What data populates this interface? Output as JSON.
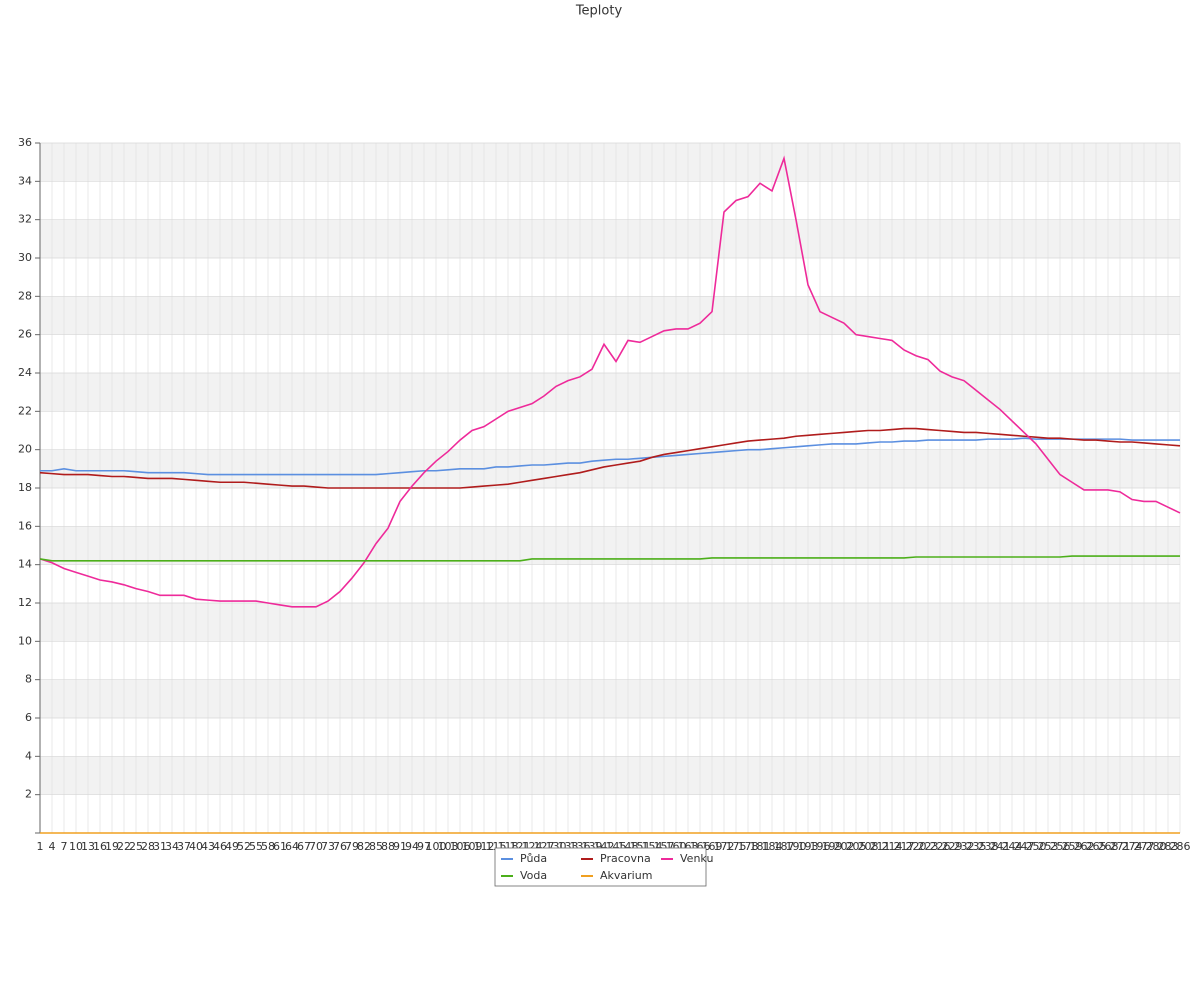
{
  "chart_data": {
    "type": "line",
    "title": "Teploty",
    "categories": [
      "1",
      "4",
      "7",
      "10",
      "13",
      "16",
      "19",
      "22",
      "25",
      "28",
      "31",
      "34",
      "37",
      "40",
      "43",
      "46",
      "49",
      "52",
      "55",
      "58",
      "61",
      "64",
      "67",
      "70",
      "73",
      "76",
      "79",
      "82",
      "85",
      "88",
      "91",
      "94",
      "97",
      "100",
      "103",
      "106",
      "109",
      "112",
      "115",
      "118",
      "121",
      "124",
      "127",
      "130",
      "133",
      "136",
      "139",
      "142",
      "145",
      "148",
      "151",
      "154",
      "157",
      "160",
      "163",
      "166",
      "169",
      "172",
      "175",
      "178",
      "181",
      "184",
      "187",
      "190",
      "193",
      "196",
      "199",
      "202",
      "205",
      "208",
      "211",
      "214",
      "217",
      "220",
      "223",
      "226",
      "229",
      "232",
      "235",
      "238",
      "241",
      "244",
      "247",
      "250",
      "253",
      "256",
      "259",
      "262",
      "265",
      "268",
      "271",
      "274",
      "277",
      "280",
      "283",
      "286"
    ],
    "series": [
      {
        "name": "Půda",
        "color": "#5b8fe0",
        "values": [
          18.9,
          18.9,
          19.0,
          18.9,
          18.9,
          18.9,
          18.9,
          18.9,
          18.85,
          18.8,
          18.8,
          18.8,
          18.8,
          18.75,
          18.7,
          18.7,
          18.7,
          18.7,
          18.7,
          18.7,
          18.7,
          18.7,
          18.7,
          18.7,
          18.7,
          18.7,
          18.7,
          18.7,
          18.7,
          18.75,
          18.8,
          18.85,
          18.9,
          18.9,
          18.95,
          19.0,
          19.0,
          19.0,
          19.1,
          19.1,
          19.15,
          19.2,
          19.2,
          19.25,
          19.3,
          19.3,
          19.4,
          19.45,
          19.5,
          19.5,
          19.55,
          19.6,
          19.65,
          19.7,
          19.75,
          19.8,
          19.85,
          19.9,
          19.95,
          20.0,
          20.0,
          20.05,
          20.1,
          20.15,
          20.2,
          20.25,
          20.3,
          20.3,
          20.3,
          20.35,
          20.4,
          20.4,
          20.45,
          20.45,
          20.5,
          20.5,
          20.5,
          20.5,
          20.5,
          20.55,
          20.55,
          20.55,
          20.6,
          20.55,
          20.55,
          20.55,
          20.55,
          20.55,
          20.55,
          20.55,
          20.55,
          20.5,
          20.5,
          20.5,
          20.5,
          20.5
        ]
      },
      {
        "name": "Pracovna",
        "color": "#b01c1c",
        "values": [
          18.8,
          18.75,
          18.7,
          18.7,
          18.7,
          18.65,
          18.6,
          18.6,
          18.55,
          18.5,
          18.5,
          18.5,
          18.45,
          18.4,
          18.35,
          18.3,
          18.3,
          18.3,
          18.25,
          18.2,
          18.15,
          18.1,
          18.1,
          18.05,
          18.0,
          18.0,
          18.0,
          18.0,
          18.0,
          18.0,
          18.0,
          18.0,
          18.0,
          18.0,
          18.0,
          18.0,
          18.05,
          18.1,
          18.15,
          18.2,
          18.3,
          18.4,
          18.5,
          18.6,
          18.7,
          18.8,
          18.95,
          19.1,
          19.2,
          19.3,
          19.4,
          19.6,
          19.75,
          19.85,
          19.95,
          20.05,
          20.15,
          20.25,
          20.35,
          20.45,
          20.5,
          20.55,
          20.6,
          20.7,
          20.75,
          20.8,
          20.85,
          20.9,
          20.95,
          21.0,
          21.0,
          21.05,
          21.1,
          21.1,
          21.05,
          21.0,
          20.95,
          20.9,
          20.9,
          20.85,
          20.8,
          20.75,
          20.7,
          20.65,
          20.6,
          20.6,
          20.55,
          20.5,
          20.5,
          20.45,
          20.4,
          20.4,
          20.35,
          20.3,
          20.25,
          20.2
        ]
      },
      {
        "name": "Venku",
        "color": "#ee2a9a",
        "values": [
          14.3,
          14.1,
          13.8,
          13.6,
          13.4,
          13.2,
          13.1,
          12.95,
          12.75,
          12.6,
          12.4,
          12.4,
          12.4,
          12.2,
          12.15,
          12.1,
          12.1,
          12.1,
          12.1,
          12.0,
          11.9,
          11.8,
          11.8,
          11.8,
          12.1,
          12.6,
          13.3,
          14.1,
          15.1,
          15.9,
          17.3,
          18.1,
          18.8,
          19.4,
          19.9,
          20.5,
          21.0,
          21.2,
          21.6,
          22.0,
          22.2,
          22.4,
          22.8,
          23.3,
          23.6,
          23.8,
          24.2,
          25.5,
          24.6,
          25.7,
          25.6,
          25.9,
          26.2,
          26.3,
          26.3,
          26.6,
          27.2,
          32.4,
          33.0,
          33.2,
          33.9,
          33.5,
          35.2,
          32.0,
          28.6,
          27.2,
          26.9,
          26.6,
          26.0,
          25.9,
          25.8,
          25.7,
          25.2,
          24.9,
          24.7,
          24.1,
          23.8,
          23.6,
          23.1,
          22.6,
          22.1,
          21.5,
          20.9,
          20.3,
          19.5,
          18.7,
          18.3,
          17.9,
          17.9,
          17.9,
          17.8,
          17.4,
          17.3,
          17.3,
          17.0,
          16.7
        ]
      },
      {
        "name": "Voda",
        "color": "#4caf1a",
        "values": [
          14.3,
          14.2,
          14.2,
          14.2,
          14.2,
          14.2,
          14.2,
          14.2,
          14.2,
          14.2,
          14.2,
          14.2,
          14.2,
          14.2,
          14.2,
          14.2,
          14.2,
          14.2,
          14.2,
          14.2,
          14.2,
          14.2,
          14.2,
          14.2,
          14.2,
          14.2,
          14.2,
          14.2,
          14.2,
          14.2,
          14.2,
          14.2,
          14.2,
          14.2,
          14.2,
          14.2,
          14.2,
          14.2,
          14.2,
          14.2,
          14.2,
          14.3,
          14.3,
          14.3,
          14.3,
          14.3,
          14.3,
          14.3,
          14.3,
          14.3,
          14.3,
          14.3,
          14.3,
          14.3,
          14.3,
          14.3,
          14.35,
          14.35,
          14.35,
          14.35,
          14.35,
          14.35,
          14.35,
          14.35,
          14.35,
          14.35,
          14.35,
          14.35,
          14.35,
          14.35,
          14.35,
          14.35,
          14.35,
          14.4,
          14.4,
          14.4,
          14.4,
          14.4,
          14.4,
          14.4,
          14.4,
          14.4,
          14.4,
          14.4,
          14.4,
          14.4,
          14.45,
          14.45,
          14.45,
          14.45,
          14.45,
          14.45,
          14.45,
          14.45,
          14.45,
          14.45
        ]
      },
      {
        "name": "Akvarium",
        "color": "#f0a020",
        "values": [
          0,
          0,
          0,
          0,
          0,
          0,
          0,
          0,
          0,
          0,
          0,
          0,
          0,
          0,
          0,
          0,
          0,
          0,
          0,
          0,
          0,
          0,
          0,
          0,
          0,
          0,
          0,
          0,
          0,
          0,
          0,
          0,
          0,
          0,
          0,
          0,
          0,
          0,
          0,
          0,
          0,
          0,
          0,
          0,
          0,
          0,
          0,
          0,
          0,
          0,
          0,
          0,
          0,
          0,
          0,
          0,
          0,
          0,
          0,
          0,
          0,
          0,
          0,
          0,
          0,
          0,
          0,
          0,
          0,
          0,
          0,
          0,
          0,
          0,
          0,
          0,
          0,
          0,
          0,
          0,
          0,
          0,
          0,
          0,
          0,
          0,
          0,
          0,
          0,
          0,
          0,
          0,
          0,
          0,
          0,
          0
        ]
      }
    ],
    "ylim": [
      0,
      36
    ],
    "yticks": [
      2,
      4,
      6,
      8,
      10,
      12,
      14,
      16,
      18,
      20,
      22,
      24,
      26,
      28,
      30,
      32,
      34,
      36
    ],
    "grid": true,
    "legend": "bottom"
  }
}
